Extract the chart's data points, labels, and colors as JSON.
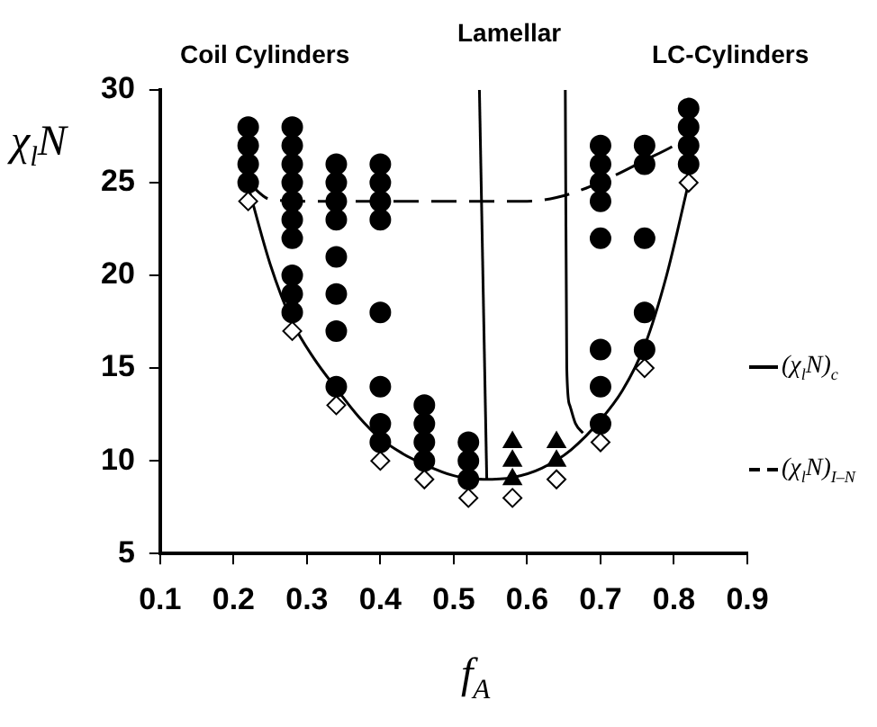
{
  "chart_data": {
    "type": "scatter",
    "xlabel": "f$_{A}$",
    "ylabel": "χ$_{l}$N",
    "xlim": [
      0.1,
      0.9
    ],
    "xticks": [
      0.1,
      0.2,
      0.3,
      0.4,
      0.5,
      0.6,
      0.7,
      0.8,
      0.9
    ],
    "ylim": [
      5,
      30
    ],
    "yticks": [
      5,
      10,
      15,
      20,
      25,
      30
    ],
    "legend": "right",
    "grid": false,
    "annotations": [
      "Coil Cylinders",
      "Lamellar",
      "LC-Cylinders"
    ],
    "series": [
      {
        "type": "scatter",
        "marker": "circle",
        "color": "#000000",
        "x": [
          0.22,
          0.22,
          0.22,
          0.22,
          0.28,
          0.28,
          0.28,
          0.28,
          0.28,
          0.28,
          0.28,
          0.28,
          0.28,
          0.28,
          0.34,
          0.34,
          0.34,
          0.34,
          0.34,
          0.34,
          0.34,
          0.34,
          0.4,
          0.4,
          0.4,
          0.4,
          0.4,
          0.4,
          0.4,
          0.4,
          0.46,
          0.46,
          0.46,
          0.46,
          0.52,
          0.52,
          0.52,
          0.7,
          0.7,
          0.7,
          0.7,
          0.7,
          0.7,
          0.7,
          0.7,
          0.76,
          0.76,
          0.76,
          0.76,
          0.76,
          0.82,
          0.82,
          0.82,
          0.82
        ],
        "values": [
          25,
          26,
          27,
          28,
          18,
          19,
          20,
          22,
          23,
          24,
          25,
          26,
          27,
          28,
          14,
          17,
          19,
          21,
          23,
          24,
          25,
          26,
          11,
          12,
          14,
          18,
          23,
          24,
          25,
          26,
          10,
          11,
          12,
          13,
          9,
          10,
          11,
          12,
          14,
          16,
          22,
          24,
          25,
          26,
          27,
          16,
          18,
          22,
          26,
          27,
          26,
          27,
          28,
          29
        ]
      },
      {
        "type": "scatter",
        "marker": "triangle",
        "color": "#000000",
        "x": [
          0.58,
          0.58,
          0.58,
          0.64,
          0.64
        ],
        "values": [
          9,
          10,
          11,
          10,
          11
        ]
      },
      {
        "type": "scatter",
        "marker": "diamond",
        "color": "#000000",
        "x": [
          0.22,
          0.28,
          0.34,
          0.4,
          0.46,
          0.52,
          0.58,
          0.64,
          0.7,
          0.76,
          0.82
        ],
        "values": [
          24,
          17,
          13,
          10,
          9,
          8,
          8,
          9,
          11,
          15,
          25
        ]
      },
      {
        "type": "line",
        "name": "(χ$_{l}$N)$_{c}$",
        "line_style": "solid",
        "color": "#000000",
        "x": [
          0.22,
          0.25,
          0.28,
          0.31,
          0.34,
          0.37,
          0.4,
          0.43,
          0.46,
          0.5,
          0.54,
          0.58,
          0.62,
          0.66,
          0.7,
          0.73,
          0.76,
          0.79,
          0.82
        ],
        "values": [
          24.8,
          20.6,
          17.5,
          15.5,
          13.9,
          12.4,
          11.2,
          10.4,
          9.8,
          9.2,
          9,
          9.1,
          9.6,
          10.6,
          12.2,
          13.8,
          16.2,
          20,
          25
        ]
      },
      {
        "type": "line",
        "name": "(χ$_{l}$N)$_{I–N}$",
        "line_style": "dashed",
        "color": "#000000",
        "x": [
          0.22,
          0.25,
          0.3,
          0.4,
          0.5,
          0.6,
          0.64,
          0.68,
          0.72,
          0.76,
          0.8,
          0.82
        ],
        "values": [
          25,
          24.1,
          24,
          24,
          24,
          24,
          24.2,
          24.7,
          25.4,
          26.2,
          27,
          27.5
        ]
      },
      {
        "type": "line",
        "line_style": "solid",
        "color": "#000000",
        "x": [
          0.535,
          0.545
        ],
        "values": [
          30,
          9
        ]
      },
      {
        "type": "line",
        "line_style": "solid",
        "color": "#000000",
        "x": [
          0.652,
          0.654,
          0.658,
          0.666,
          0.676
        ],
        "values": [
          30,
          15,
          13,
          12,
          11.5
        ]
      }
    ]
  }
}
